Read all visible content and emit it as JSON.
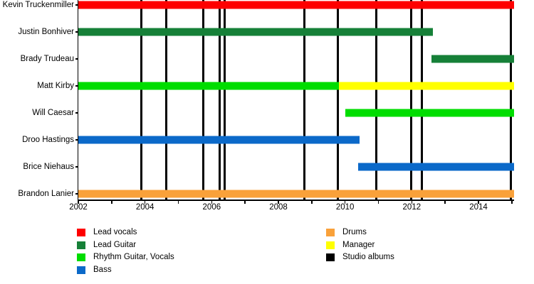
{
  "chart_data": {
    "type": "timeline",
    "x_axis": {
      "min": 2002,
      "max": 2015.07,
      "major_ticks": [
        2002,
        2004,
        2006,
        2008,
        2010,
        2012,
        2014
      ],
      "minor_tick_interval": 1,
      "grid": false
    },
    "members": [
      {
        "name": "Kevin Truckenmiller",
        "segments": [
          {
            "role": "Lead vocals",
            "color": "#fe0000",
            "start": 2002,
            "end": 2015.07
          }
        ]
      },
      {
        "name": "Justin Bonhiver",
        "segments": [
          {
            "role": "Lead Guitar",
            "color": "#168038",
            "start": 2002,
            "end": 2012.63
          }
        ]
      },
      {
        "name": "Brady Trudeau",
        "segments": [
          {
            "role": "Lead Guitar",
            "color": "#168038",
            "start": 2012.6,
            "end": 2015.07
          }
        ]
      },
      {
        "name": "Matt Kirby",
        "segments": [
          {
            "role": "Rhythm Guitar, Vocals",
            "color": "#00dd00",
            "start": 2002,
            "end": 2009.82
          },
          {
            "role": "Manager",
            "color": "#ffff00",
            "start": 2009.82,
            "end": 2015.07
          }
        ]
      },
      {
        "name": "Will Caesar",
        "segments": [
          {
            "role": "Rhythm Guitar, Vocals",
            "color": "#00dd00",
            "start": 2010.0,
            "end": 2015.07
          }
        ]
      },
      {
        "name": "Droo Hastings",
        "segments": [
          {
            "role": "Bass",
            "color": "#0b69c9",
            "start": 2002,
            "end": 2010.43
          }
        ]
      },
      {
        "name": "Brice Niehaus",
        "segments": [
          {
            "role": "Bass",
            "color": "#0b69c9",
            "start": 2010.4,
            "end": 2015.07
          }
        ]
      },
      {
        "name": "Brandon Lanier",
        "segments": [
          {
            "role": "Drums",
            "color": "#f9a13a",
            "start": 2002,
            "end": 2015.07
          }
        ]
      }
    ],
    "studio_albums": [
      2003.9,
      2004.63,
      2005.74,
      2006.23,
      2006.38,
      2008.79,
      2009.79,
      2010.94,
      2011.99,
      2012.31,
      2014.98
    ],
    "legend": {
      "position": "bottom",
      "left_column": [
        {
          "label": "Lead vocals",
          "color": "#fe0000"
        },
        {
          "label": "Lead Guitar",
          "color": "#168038"
        },
        {
          "label": "Rhythm Guitar, Vocals",
          "color": "#00dd00"
        },
        {
          "label": "Bass",
          "color": "#0b69c9"
        }
      ],
      "right_column": [
        {
          "label": "Drums",
          "color": "#f9a13a"
        },
        {
          "label": "Manager",
          "color": "#ffff00"
        },
        {
          "label": "Studio albums",
          "color": "#000000"
        }
      ]
    }
  }
}
